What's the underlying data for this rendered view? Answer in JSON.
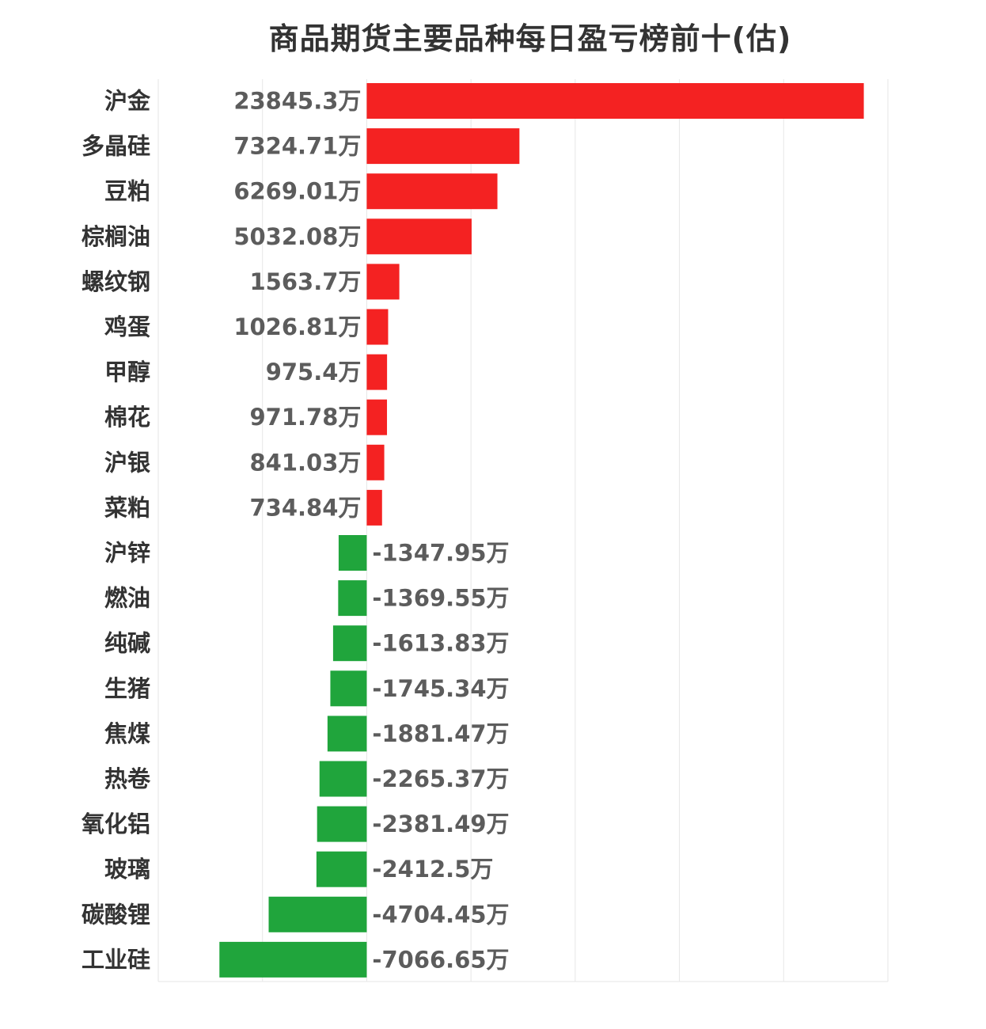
{
  "chart_data": {
    "type": "bar",
    "orientation": "horizontal",
    "title": "商品期货主要品种每日盈亏榜前十(估)",
    "unit": "万",
    "categories": [
      "沪金",
      "多晶硅",
      "豆粕",
      "棕榈油",
      "螺纹钢",
      "鸡蛋",
      "甲醇",
      "棉花",
      "沪银",
      "菜粕",
      "沪锌",
      "燃油",
      "纯碱",
      "生猪",
      "焦煤",
      "热卷",
      "氧化铝",
      "玻璃",
      "碳酸锂",
      "工业硅"
    ],
    "values": [
      23845.3,
      7324.71,
      6269.01,
      5032.08,
      1563.7,
      1026.81,
      975.4,
      971.78,
      841.03,
      734.84,
      -1347.95,
      -1369.55,
      -1613.83,
      -1745.34,
      -1881.47,
      -2265.37,
      -2381.49,
      -2412.5,
      -4704.45,
      -7066.65
    ],
    "value_labels": [
      "23845.3万",
      "7324.71万",
      "6269.01万",
      "5032.08万",
      "1563.7万",
      "1026.81万",
      "975.4万",
      "971.78万",
      "841.03万",
      "734.84万",
      "-1347.95万",
      "-1369.55万",
      "-1613.83万",
      "-1745.34万",
      "-1881.47万",
      "-2265.37万",
      "-2381.49万",
      "-2412.5万",
      "-4704.45万",
      "-7066.65万"
    ],
    "xlim": [
      -10000,
      25000
    ],
    "grid": true,
    "colors": {
      "positive": "#f42222",
      "negative": "#20a53c",
      "grid": "#e6e6e6"
    }
  }
}
